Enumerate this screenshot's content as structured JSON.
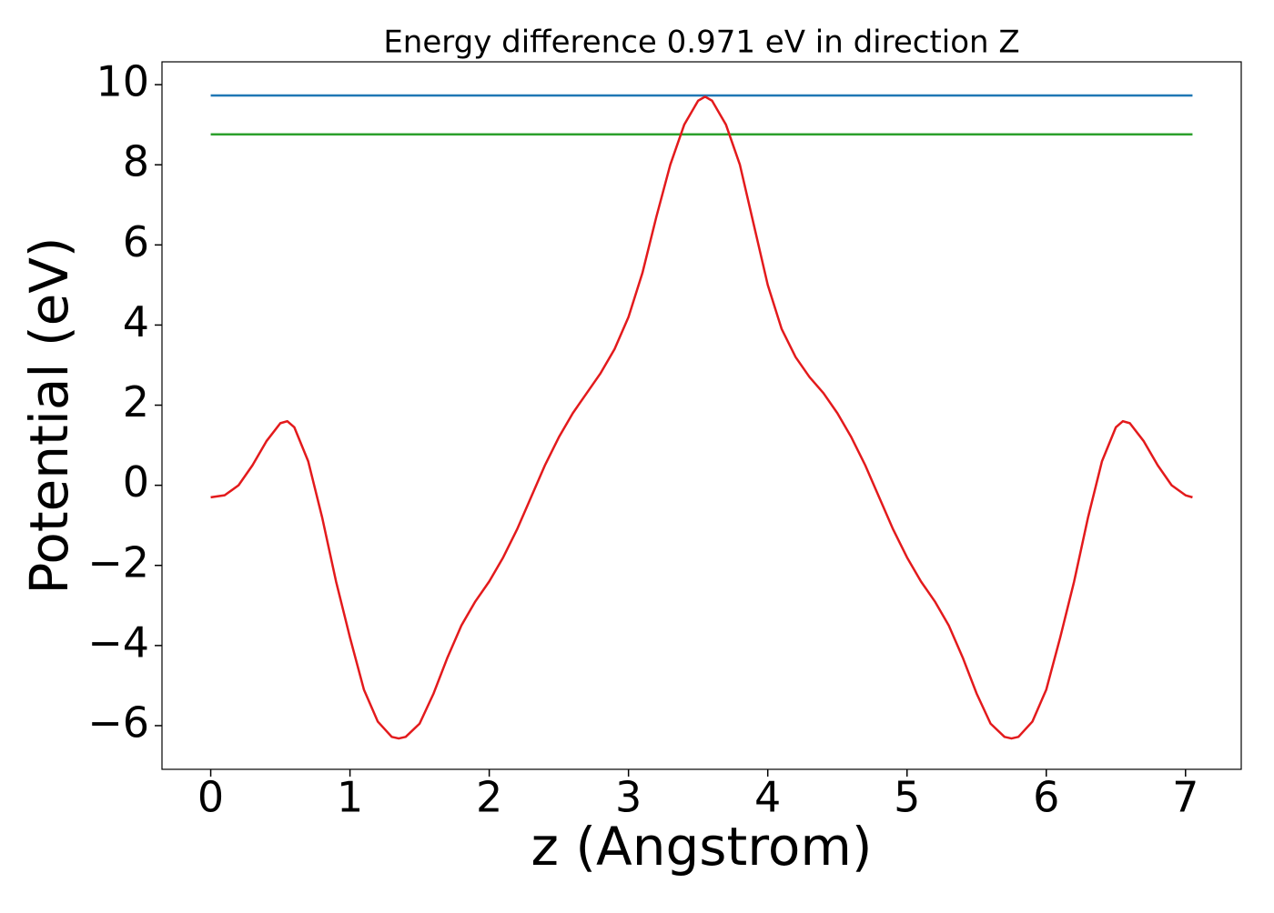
{
  "chart_data": {
    "type": "line",
    "title": "Energy difference 0.971 eV in direction Z",
    "xlabel": "z (Angstrom)",
    "ylabel": "Potential (eV)",
    "xlim": [
      -0.35,
      7.4
    ],
    "ylim": [
      -7.09,
      10.57
    ],
    "xticks": [
      0,
      1,
      2,
      3,
      4,
      5,
      6,
      7
    ],
    "yticks": [
      {
        "value": -6,
        "label": "−6"
      },
      {
        "value": -4,
        "label": "−4"
      },
      {
        "value": -2,
        "label": "−2"
      },
      0,
      2,
      4,
      6,
      8,
      10
    ],
    "series": [
      {
        "color": "#1f77b4",
        "x": [
          0,
          7.05
        ],
        "values": [
          9.73,
          9.73
        ]
      },
      {
        "color": "#2ca02c",
        "x": [
          0,
          7.05
        ],
        "values": [
          8.76,
          8.76
        ]
      },
      {
        "color": "#e31a1c",
        "x": [
          0,
          0.1,
          0.2,
          0.3,
          0.4,
          0.5,
          0.55,
          0.6,
          0.7,
          0.8,
          0.9,
          1.0,
          1.1,
          1.2,
          1.3,
          1.35,
          1.4,
          1.5,
          1.6,
          1.7,
          1.8,
          1.9,
          2.0,
          2.1,
          2.2,
          2.3,
          2.4,
          2.5,
          2.6,
          2.7,
          2.8,
          2.9,
          3.0,
          3.1,
          3.2,
          3.3,
          3.4,
          3.5,
          3.55,
          3.6,
          3.7,
          3.8,
          3.9,
          4.0,
          4.1,
          4.2,
          4.3,
          4.4,
          4.5,
          4.6,
          4.7,
          4.8,
          4.9,
          5.0,
          5.1,
          5.2,
          5.3,
          5.4,
          5.5,
          5.6,
          5.7,
          5.75,
          5.8,
          5.9,
          6.0,
          6.1,
          6.2,
          6.3,
          6.4,
          6.5,
          6.55,
          6.6,
          6.7,
          6.8,
          6.9,
          7.0,
          7.05
        ],
        "values": [
          -0.3,
          -0.25,
          0.0,
          0.5,
          1.1,
          1.55,
          1.6,
          1.45,
          0.6,
          -0.8,
          -2.4,
          -3.8,
          -5.1,
          -5.9,
          -6.28,
          -6.32,
          -6.28,
          -5.95,
          -5.2,
          -4.3,
          -3.5,
          -2.9,
          -2.4,
          -1.8,
          -1.1,
          -0.3,
          0.5,
          1.2,
          1.8,
          2.3,
          2.8,
          3.4,
          4.2,
          5.3,
          6.7,
          8.0,
          9.0,
          9.6,
          9.7,
          9.6,
          9.0,
          8.0,
          6.5,
          5.0,
          3.9,
          3.2,
          2.7,
          2.3,
          1.8,
          1.2,
          0.5,
          -0.3,
          -1.1,
          -1.8,
          -2.4,
          -2.9,
          -3.5,
          -4.3,
          -5.2,
          -5.95,
          -6.28,
          -6.32,
          -6.28,
          -5.9,
          -5.1,
          -3.8,
          -2.4,
          -0.8,
          0.6,
          1.45,
          1.6,
          1.55,
          1.1,
          0.5,
          0.0,
          -0.25,
          -0.3
        ]
      }
    ]
  }
}
